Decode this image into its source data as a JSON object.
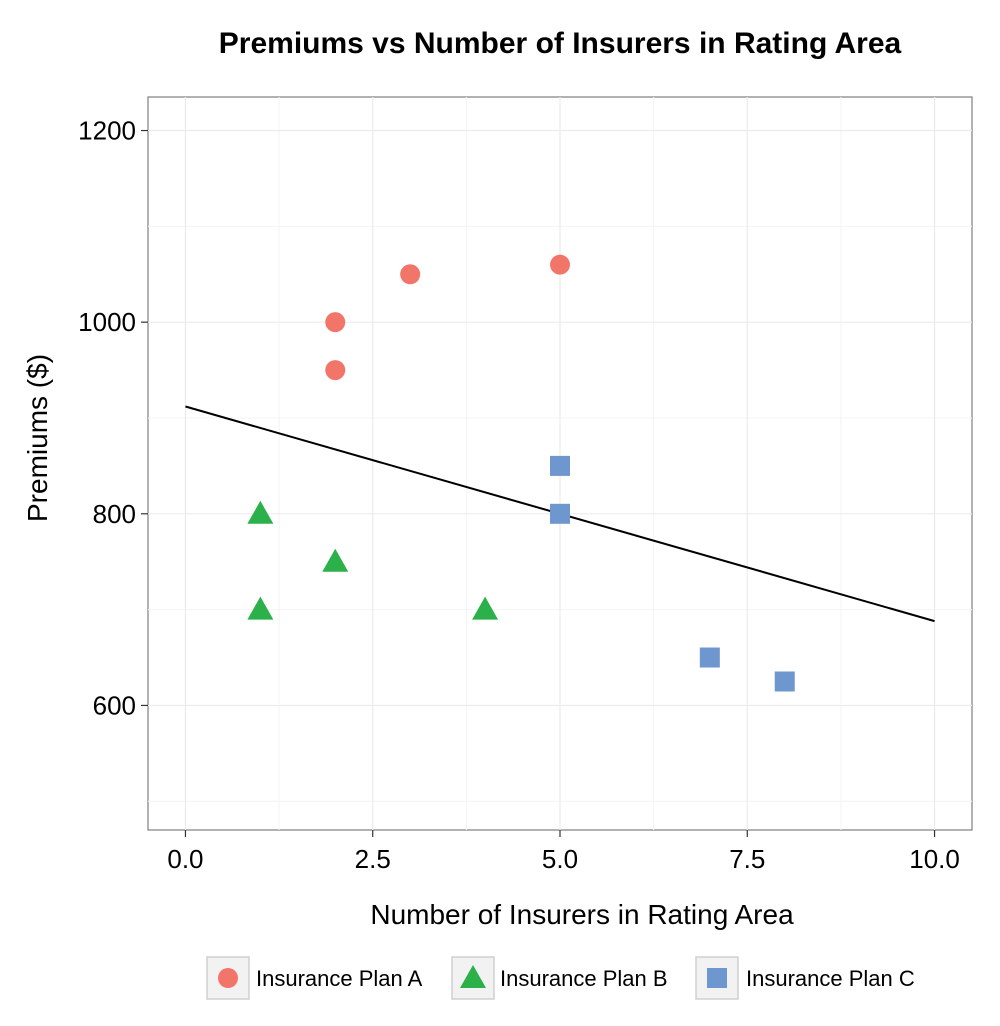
{
  "chart_data": {
    "type": "scatter",
    "title": "Premiums vs Number of Insurers in Rating Area",
    "xlabel": "Number of Insurers in Rating Area",
    "ylabel": "Premiums ($)",
    "xlim": [
      -0.5,
      10.5
    ],
    "ylim": [
      470,
      1235
    ],
    "x_ticks": [
      {
        "value": 0,
        "label": "0.0"
      },
      {
        "value": 2.5,
        "label": "2.5"
      },
      {
        "value": 5,
        "label": "5.0"
      },
      {
        "value": 7.5,
        "label": "7.5"
      },
      {
        "value": 10,
        "label": "10.0"
      }
    ],
    "y_ticks": [
      {
        "value": 600,
        "label": "600"
      },
      {
        "value": 800,
        "label": "800"
      },
      {
        "value": 1000,
        "label": "1000"
      },
      {
        "value": 1200,
        "label": "1200"
      }
    ],
    "grid": true,
    "legend_position": "bottom",
    "series": [
      {
        "name": "Insurance Plan A",
        "shape": "circle",
        "color": "#F2756A",
        "points": [
          [
            2,
            1000
          ],
          [
            2,
            950
          ],
          [
            3,
            1050
          ],
          [
            5,
            1060
          ]
        ]
      },
      {
        "name": "Insurance Plan B",
        "shape": "triangle",
        "color": "#2BB04A",
        "points": [
          [
            1,
            800
          ],
          [
            1,
            700
          ],
          [
            2,
            750
          ],
          [
            4,
            700
          ]
        ]
      },
      {
        "name": "Insurance Plan C",
        "shape": "square",
        "color": "#6E96CF",
        "points": [
          [
            5,
            850
          ],
          [
            5,
            800
          ],
          [
            7,
            650
          ],
          [
            8,
            625
          ]
        ]
      }
    ],
    "trend_line": {
      "x": [
        0,
        10
      ],
      "y": [
        912,
        688
      ],
      "color": "#000000"
    }
  }
}
